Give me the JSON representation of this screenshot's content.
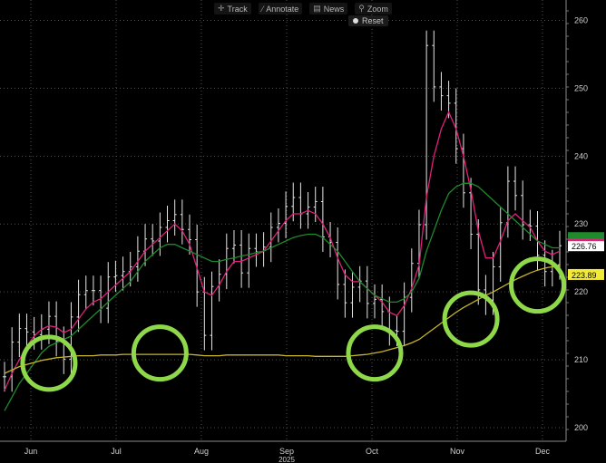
{
  "toolbar": {
    "track_label": "Track",
    "annotate_label": "Annotate",
    "news_label": "News",
    "zoom_label": "Zoom",
    "reset_label": "Reset"
  },
  "chart_data": {
    "type": "line",
    "ylim": [
      198,
      263
    ],
    "yticks": [
      200,
      210,
      220,
      230,
      240,
      250,
      260
    ],
    "xticks": [
      "Jun",
      "Jul",
      "Aug",
      "Sep",
      "Oct",
      "Nov",
      "Dec"
    ],
    "xyear": "2025",
    "last_price_label": "226.76",
    "ma200_label": "223.89",
    "colors": {
      "bars": "#e6e6e6",
      "ma_fast": "#e0207a",
      "ma_mid": "#1f8a2c",
      "ma_slow": "#c8b429",
      "circles": "#8ed84a",
      "grid": "#505050"
    },
    "series": [
      {
        "values": [
          207.5,
          212.6,
          214.6,
          214.1,
          213.7,
          214.5,
          216.4,
          212.7,
          210.1,
          216.3,
          219.6,
          220.2,
          220.2,
          217.6,
          222.2,
          222.4,
          223.0,
          223.7,
          226.0,
          227.8,
          227.5,
          229.5,
          230.5,
          231.4,
          229.2,
          227.7,
          220.0,
          213.6,
          220.8,
          222.6,
          226.4,
          226.9,
          222.8,
          226.4,
          225.9,
          226.6,
          229.5,
          230.1,
          232.6,
          233.9,
          231.5,
          232.5,
          233.3,
          228.1,
          227.3,
          221.1,
          218.4,
          220.7,
          221.6,
          218.3,
          218.9,
          217.1,
          214.3,
          214.2,
          219.2,
          224.2,
          229.9,
          256.3,
          250.2,
          248.9,
          247.8,
          241.1,
          234.6,
          228.5,
          220.3,
          218.8,
          223.7,
          230.2,
          236.3,
          234.2,
          229.9,
          229.7,
          225.4,
          223.0,
          224.0,
          226.8
        ]
      },
      {
        "values": [
          205.5,
          208.0,
          210.0,
          212.0,
          213.5,
          214.5,
          215.0,
          214.8,
          214.0,
          214.5,
          216.0,
          217.5,
          218.5,
          219.0,
          220.0,
          221.0,
          222.0,
          223.0,
          224.5,
          226.0,
          227.0,
          228.0,
          229.0,
          230.0,
          229.0,
          227.0,
          223.5,
          220.0,
          219.5,
          221.0,
          223.0,
          224.5,
          224.5,
          225.0,
          225.5,
          226.0,
          227.5,
          229.0,
          230.5,
          231.5,
          231.5,
          232.0,
          231.5,
          230.0,
          228.0,
          225.0,
          222.5,
          221.5,
          221.5,
          220.5,
          219.5,
          218.5,
          217.0,
          216.5,
          218.0,
          220.5,
          224.0,
          234.0,
          240.0,
          244.0,
          246.5,
          244.0,
          240.0,
          235.0,
          229.0,
          225.0,
          225.0,
          227.5,
          230.5,
          231.5,
          230.5,
          229.5,
          227.5,
          226.0,
          225.5,
          226.0
        ]
      },
      {
        "values": [
          202.5,
          204.5,
          206.5,
          208.0,
          209.5,
          211.0,
          212.0,
          212.5,
          213.0,
          213.5,
          214.5,
          215.5,
          216.5,
          217.5,
          218.5,
          219.5,
          220.5,
          221.5,
          223.0,
          224.5,
          225.5,
          226.5,
          227.0,
          227.0,
          226.5,
          226.0,
          225.5,
          225.0,
          224.5,
          224.5,
          224.8,
          225.0,
          225.3,
          225.5,
          225.8,
          226.0,
          226.5,
          227.0,
          227.5,
          228.0,
          228.3,
          228.5,
          228.5,
          228.0,
          227.0,
          226.0,
          224.5,
          223.0,
          221.5,
          220.5,
          219.5,
          219.0,
          218.5,
          218.5,
          219.0,
          220.0,
          222.0,
          226.0,
          229.0,
          232.0,
          234.5,
          235.5,
          236.0,
          236.0,
          235.5,
          234.5,
          233.5,
          232.5,
          231.5,
          230.5,
          229.5,
          228.5,
          227.5,
          227.0,
          226.5,
          226.5
        ]
      },
      {
        "values": [
          208.0,
          208.5,
          209.0,
          209.3,
          209.6,
          209.9,
          210.1,
          210.3,
          210.4,
          210.5,
          210.6,
          210.6,
          210.6,
          210.7,
          210.7,
          210.7,
          210.8,
          210.8,
          210.8,
          210.8,
          210.8,
          210.8,
          210.8,
          210.8,
          210.8,
          210.8,
          210.7,
          210.6,
          210.6,
          210.6,
          210.7,
          210.7,
          210.7,
          210.7,
          210.7,
          210.7,
          210.7,
          210.7,
          210.6,
          210.6,
          210.6,
          210.6,
          210.5,
          210.5,
          210.5,
          210.5,
          210.5,
          210.6,
          210.7,
          210.8,
          211.0,
          211.2,
          211.5,
          211.8,
          212.1,
          212.5,
          213.0,
          213.8,
          214.6,
          215.4,
          216.2,
          217.0,
          217.7,
          218.3,
          218.9,
          219.5,
          220.0,
          220.6,
          221.2,
          221.8,
          222.3,
          222.8,
          223.2,
          223.5,
          223.7,
          223.9
        ]
      }
    ],
    "highlight_circles": [
      {
        "date_index": 6,
        "price": 209.5
      },
      {
        "date_index": 21,
        "price": 211.0
      },
      {
        "date_index": 50,
        "price": 211.0
      },
      {
        "date_index": 63,
        "price": 216.0
      },
      {
        "date_index": 72,
        "price": 221.0
      }
    ]
  }
}
